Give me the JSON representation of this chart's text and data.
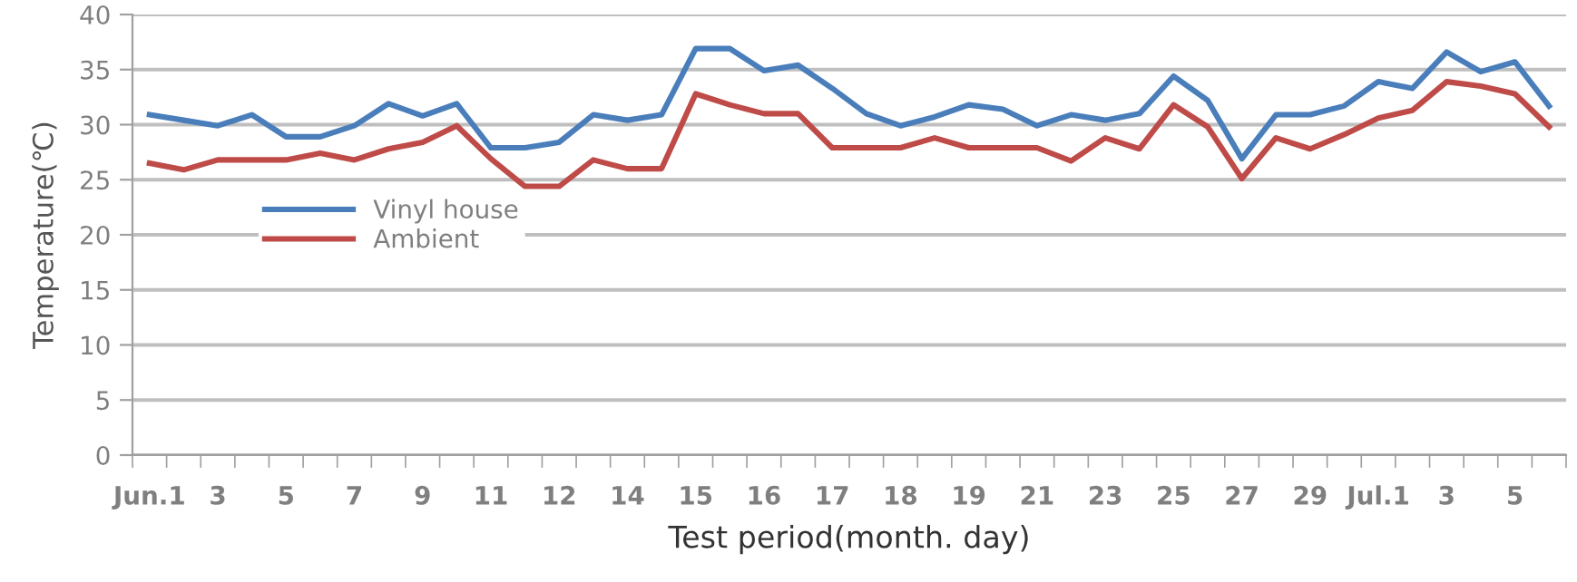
{
  "chart_data": {
    "type": "line",
    "xlabel": "Test period(month. day)",
    "ylabel": "Temperature(℃)",
    "categories": [
      "Jun.1",
      null,
      "3",
      null,
      "5",
      null,
      "7",
      null,
      "9",
      null,
      "11",
      null,
      "12",
      null,
      "14",
      null,
      "15",
      null,
      "16",
      null,
      "17",
      null,
      "18",
      null,
      "19",
      null,
      "21",
      null,
      "23",
      null,
      "25",
      null,
      "27",
      null,
      "29",
      null,
      "Jul.1",
      null,
      "3",
      null,
      "5",
      null
    ],
    "series": [
      {
        "name": "Vinyl house",
        "color": "#4a7ebb",
        "values": [
          30.9,
          30.4,
          29.9,
          30.9,
          28.9,
          28.9,
          29.9,
          31.9,
          30.8,
          31.9,
          27.9,
          27.9,
          28.4,
          30.9,
          30.4,
          30.9,
          36.9,
          36.9,
          34.9,
          35.4,
          33.3,
          31.0,
          29.9,
          30.7,
          31.8,
          31.4,
          29.9,
          30.9,
          30.4,
          31.0,
          34.4,
          32.2,
          26.9,
          30.9,
          30.9,
          31.7,
          33.9,
          33.3,
          36.6,
          34.8,
          35.7,
          31.7
        ]
      },
      {
        "name": "Ambient",
        "color": "#be4b48",
        "values": [
          26.5,
          25.9,
          26.8,
          26.8,
          26.8,
          27.4,
          26.8,
          27.8,
          28.4,
          29.9,
          26.9,
          24.4,
          24.4,
          26.8,
          26.0,
          26.0,
          32.8,
          31.8,
          31.0,
          31.0,
          27.9,
          27.9,
          27.9,
          28.8,
          27.9,
          27.9,
          27.9,
          26.7,
          28.8,
          27.8,
          31.8,
          29.8,
          25.1,
          28.8,
          27.8,
          29.1,
          30.6,
          31.3,
          33.9,
          33.5,
          32.8,
          29.8
        ]
      }
    ],
    "ylim": [
      0,
      40
    ],
    "yticks": [
      0,
      5,
      10,
      15,
      20,
      25,
      30,
      35,
      40
    ],
    "grid": "y",
    "legend": "center left",
    "marker": "none",
    "line_style": "solid"
  }
}
